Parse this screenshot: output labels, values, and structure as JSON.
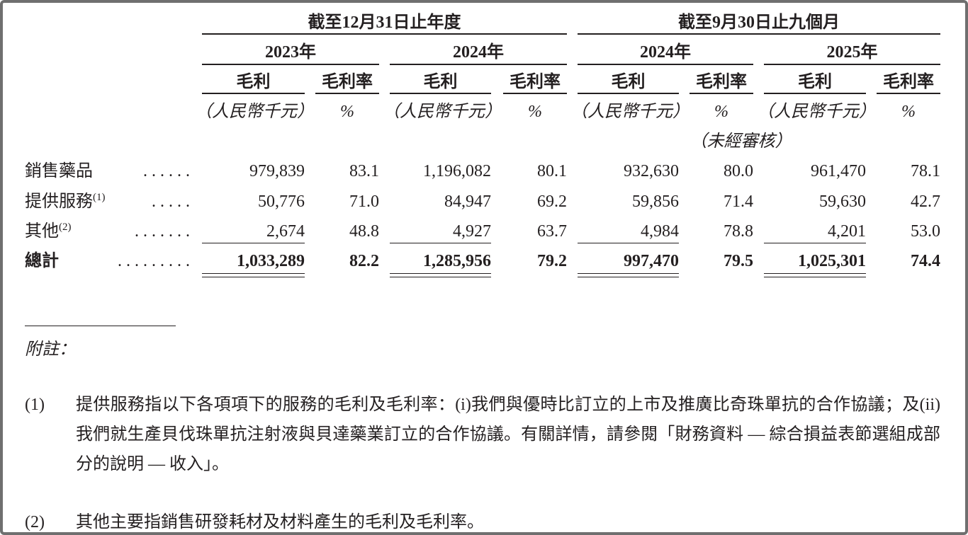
{
  "table": {
    "group_headers": [
      "截至12月31日止年度",
      "截至9月30日止九個月"
    ],
    "years": [
      "2023年",
      "2024年",
      "2024年",
      "2025年"
    ],
    "column_headers": [
      "毛利",
      "毛利率",
      "毛利",
      "毛利率",
      "毛利",
      "毛利率",
      "毛利",
      "毛利率"
    ],
    "units": [
      "（人民幣千元）",
      "%",
      "（人民幣千元）",
      "%",
      "（人民幣千元）",
      "%",
      "（人民幣千元）",
      "%"
    ],
    "unaudited": "（未經審核）",
    "rows": [
      {
        "label": "銷售藥品",
        "leader": ". . . . . .",
        "cells": [
          "979,839",
          "83.1",
          "1,196,082",
          "80.1",
          "932,630",
          "80.0",
          "961,470",
          "78.1"
        ]
      },
      {
        "label": "提供服務",
        "note": "(1)",
        "leader": ". . . . .",
        "cells": [
          "50,776",
          "71.0",
          "84,947",
          "69.2",
          "59,856",
          "71.4",
          "59,630",
          "42.7"
        ]
      },
      {
        "label": "其他",
        "note": "(2)",
        "leader": ". . . . . . .",
        "cells": [
          "2,674",
          "48.8",
          "4,927",
          "63.7",
          "4,984",
          "78.8",
          "4,201",
          "53.0"
        ]
      },
      {
        "label": "總計",
        "leader": ". . . . . . . . .",
        "cells": [
          "1,033,289",
          "82.2",
          "1,285,956",
          "79.2",
          "997,470",
          "79.5",
          "1,025,301",
          "74.4"
        ]
      }
    ]
  },
  "notes": {
    "title": "附註：",
    "items": [
      {
        "marker": "(1)",
        "text": "提供服務指以下各項項下的服務的毛利及毛利率：(i)我們與優時比訂立的上市及推廣比奇珠單抗的合作協議；及(ii)我們就生產貝伐珠單抗注射液與貝達藥業訂立的合作協議。有關詳情，請參閱「財務資料 — 綜合損益表節選組成部分的說明 — 收入」。"
      },
      {
        "marker": "(2)",
        "text": "其他主要指銷售研發耗材及材料產生的毛利及毛利率。"
      }
    ]
  }
}
